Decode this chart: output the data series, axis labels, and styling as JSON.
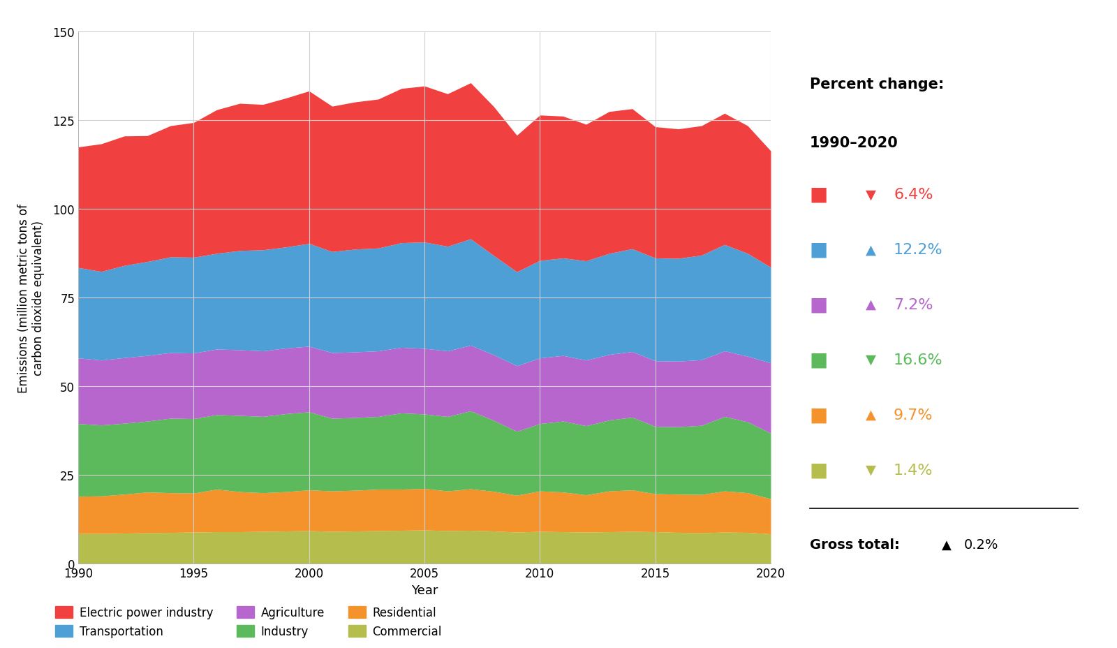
{
  "years": [
    1990,
    1991,
    1992,
    1993,
    1994,
    1995,
    1996,
    1997,
    1998,
    1999,
    2000,
    2001,
    2002,
    2003,
    2004,
    2005,
    2006,
    2007,
    2008,
    2009,
    2010,
    2011,
    2012,
    2013,
    2014,
    2015,
    2016,
    2017,
    2018,
    2019,
    2020
  ],
  "commercial": [
    8.5,
    8.5,
    8.6,
    8.7,
    8.8,
    8.9,
    9.0,
    9.0,
    9.1,
    9.2,
    9.3,
    9.1,
    9.2,
    9.3,
    9.4,
    9.5,
    9.3,
    9.4,
    9.2,
    8.9,
    9.1,
    9.0,
    8.9,
    9.0,
    9.1,
    9.0,
    8.8,
    8.7,
    8.9,
    8.8,
    8.4
  ],
  "residential": [
    10.5,
    10.6,
    11.0,
    11.5,
    11.2,
    11.0,
    12.0,
    11.3,
    10.9,
    11.1,
    11.5,
    11.4,
    11.5,
    11.7,
    11.6,
    11.7,
    11.2,
    11.7,
    11.2,
    10.4,
    11.4,
    11.2,
    10.5,
    11.5,
    11.7,
    10.7,
    10.8,
    10.8,
    11.6,
    11.2,
    9.9
  ],
  "industry": [
    20.5,
    20.0,
    20.0,
    20.0,
    21.0,
    21.0,
    21.0,
    21.5,
    21.5,
    22.0,
    22.0,
    20.5,
    20.5,
    20.5,
    21.5,
    21.0,
    21.0,
    22.0,
    20.0,
    18.0,
    19.0,
    20.0,
    19.5,
    20.0,
    20.5,
    19.0,
    19.0,
    19.5,
    21.0,
    20.0,
    18.5
  ],
  "agriculture": [
    18.5,
    18.3,
    18.5,
    18.5,
    18.5,
    18.5,
    18.5,
    18.5,
    18.5,
    18.5,
    18.5,
    18.5,
    18.5,
    18.5,
    18.5,
    18.5,
    18.5,
    18.5,
    18.5,
    18.5,
    18.5,
    18.5,
    18.5,
    18.5,
    18.5,
    18.5,
    18.5,
    18.5,
    18.5,
    18.5,
    19.8
  ],
  "transportation": [
    25.5,
    25.0,
    26.0,
    26.5,
    27.0,
    27.0,
    27.0,
    28.0,
    28.5,
    28.5,
    29.0,
    28.5,
    29.0,
    29.0,
    29.5,
    30.0,
    29.5,
    30.0,
    28.0,
    26.5,
    27.5,
    27.5,
    28.0,
    28.5,
    29.0,
    29.0,
    29.0,
    29.5,
    30.0,
    29.0,
    27.0
  ],
  "electric_power": [
    34.0,
    36.0,
    36.5,
    35.5,
    37.0,
    38.0,
    40.5,
    41.5,
    41.0,
    42.0,
    43.0,
    41.0,
    41.5,
    42.0,
    43.5,
    44.0,
    43.0,
    44.0,
    42.0,
    38.5,
    41.0,
    40.0,
    38.5,
    40.0,
    39.5,
    37.0,
    36.5,
    36.5,
    37.0,
    36.0,
    32.8
  ],
  "colors": {
    "commercial": "#b5bd4c",
    "residential": "#f4922b",
    "industry": "#5cba5c",
    "agriculture": "#b666cc",
    "transportation": "#4d9fd6",
    "electric_power": "#f04040"
  },
  "legend_items": [
    {
      "label": "Electric power industry",
      "color": "#f04040"
    },
    {
      "label": "Transportation",
      "color": "#4d9fd6"
    },
    {
      "label": "Agriculture",
      "color": "#b666cc"
    },
    {
      "label": "Industry",
      "color": "#5cba5c"
    },
    {
      "label": "Residential",
      "color": "#f4922b"
    },
    {
      "label": "Commercial",
      "color": "#b5bd4c"
    }
  ],
  "ylabel": "Emissions (million metric tons of\ncarbon dioxide equivalent)",
  "xlabel": "Year",
  "ylim": [
    0,
    150
  ],
  "yticks": [
    0,
    25,
    50,
    75,
    100,
    125,
    150
  ],
  "background_color": "#ffffff",
  "grid_color": "#d0d0d0",
  "panel_items": [
    {
      "pct": "6.4%",
      "direction": "down",
      "color": "#f04040"
    },
    {
      "pct": "12.2%",
      "direction": "up",
      "color": "#4d9fd6"
    },
    {
      "pct": "7.2%",
      "direction": "up",
      "color": "#b666cc"
    },
    {
      "pct": "16.6%",
      "direction": "down",
      "color": "#5cba5c"
    },
    {
      "pct": "9.7%",
      "direction": "up",
      "color": "#f4922b"
    },
    {
      "pct": "1.4%",
      "direction": "down",
      "color": "#b5bd4c"
    }
  ]
}
